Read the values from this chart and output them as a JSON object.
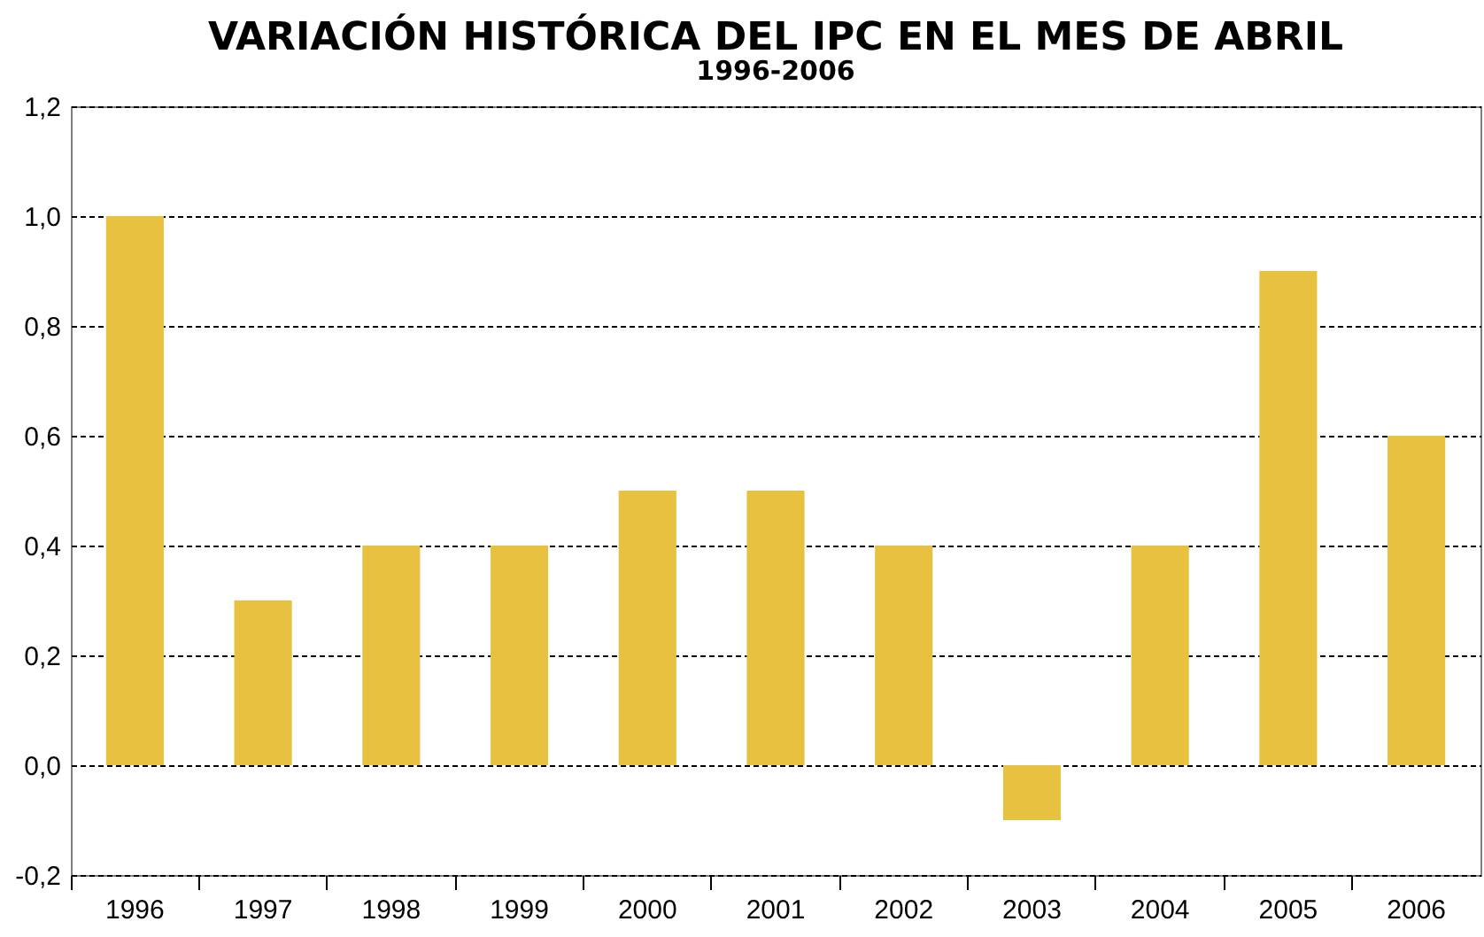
{
  "chart_data": {
    "type": "bar",
    "title": "VARIACIÓN HISTÓRICA DEL IPC EN EL MES DE ABRIL",
    "subtitle": "1996-2006",
    "categories": [
      "1996",
      "1997",
      "1998",
      "1999",
      "2000",
      "2001",
      "2002",
      "2003",
      "2004",
      "2005",
      "2006"
    ],
    "values": [
      1.0,
      0.3,
      0.4,
      0.4,
      0.5,
      0.5,
      0.4,
      -0.1,
      0.4,
      0.9,
      0.6
    ],
    "color": "#e8c140",
    "ylim": [
      -0.2,
      1.2
    ],
    "yticks": [
      {
        "value": -0.2,
        "label": "-0,2"
      },
      {
        "value": 0,
        "label": "0,0"
      },
      {
        "value": 0.2,
        "label": "0,2"
      },
      {
        "value": 0.4,
        "label": "0,4"
      },
      {
        "value": 0.6,
        "label": "0,6"
      },
      {
        "value": 0.8,
        "label": "0,8"
      },
      {
        "value": 1.0,
        "label": "1,0"
      },
      {
        "value": 1.2,
        "label": "1,2"
      }
    ],
    "grid": "y"
  }
}
